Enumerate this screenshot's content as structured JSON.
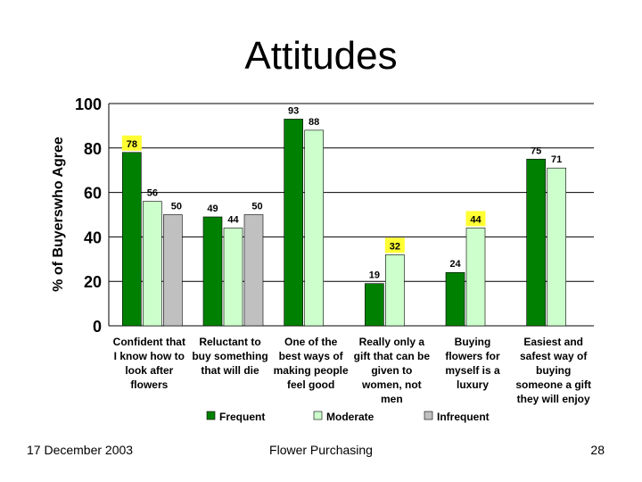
{
  "slide": {
    "title": "Attitudes",
    "footer_date": "17 December 2003",
    "footer_center": "Flower Purchasing",
    "page_number": "28"
  },
  "colors": {
    "frequent": "#008000",
    "moderate": "#ccffcc",
    "infrequent": "#c0c0c0",
    "highlight": "#ffff33"
  },
  "chart_data": {
    "type": "bar",
    "title": "Attitudes",
    "ylabel": "% of Buyerswho Agree",
    "xlabel": "",
    "ylim": [
      0,
      100
    ],
    "yticks": [
      0,
      20,
      40,
      60,
      80,
      100
    ],
    "grid": true,
    "legend_position": "bottom",
    "categories": [
      [
        "Confident that",
        "I know how to",
        "look after",
        "flowers"
      ],
      [
        "Reluctant to",
        "buy something",
        "that will die"
      ],
      [
        "One of the",
        "best ways of",
        "making people",
        "feel good"
      ],
      [
        "Really only a",
        "gift that can be",
        "given to",
        "women, not",
        "men"
      ],
      [
        "Buying",
        "flowers for",
        "myself is a",
        "luxury"
      ],
      [
        "Easiest and",
        "safest way of",
        "buying",
        "someone a gift",
        "they will enjoy"
      ]
    ],
    "series": [
      {
        "name": "Frequent",
        "values": [
          78,
          49,
          93,
          19,
          24,
          75
        ],
        "highlight": [
          true,
          false,
          false,
          false,
          false,
          false
        ]
      },
      {
        "name": "Moderate",
        "values": [
          56,
          44,
          88,
          32,
          44,
          71
        ],
        "highlight": [
          false,
          false,
          false,
          true,
          true,
          false
        ]
      },
      {
        "name": "Infrequent",
        "values": [
          50,
          50,
          null,
          null,
          null,
          null
        ],
        "highlight": [
          false,
          false,
          false,
          false,
          false,
          false
        ]
      }
    ]
  }
}
